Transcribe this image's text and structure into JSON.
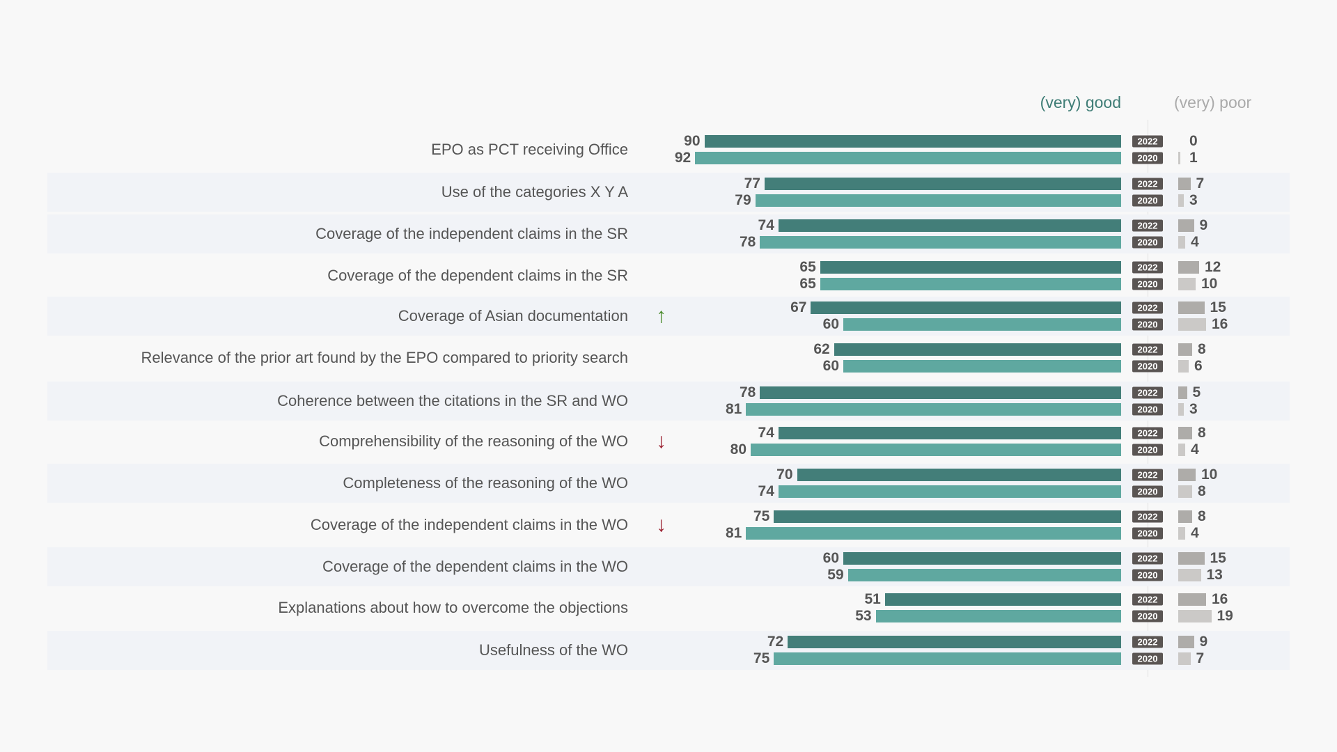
{
  "chart_data": {
    "type": "bar",
    "title": "",
    "legend": {
      "good": "(very) good",
      "poor": "(very) poor"
    },
    "years": [
      "2022",
      "2020"
    ],
    "colors": {
      "good_2022": "#437e79",
      "good_2020": "#5fa8a0",
      "poor_2022": "#aeaca9",
      "poor_2020": "#cbc9c7",
      "up": "#4a8a2c",
      "down": "#9b2231"
    },
    "categories": [
      "EPO as PCT receiving Office",
      "Use of the categories X Y A",
      "Coverage of the independent claims in the SR",
      "Coverage of the dependent claims in the SR",
      "Coverage of Asian documentation",
      "Relevance of the prior art found by the EPO compared to priority search",
      "Coherence between the citations in the SR and WO",
      "Comprehensibility of the reasoning of the WO",
      "Completeness of the reasoning of the WO",
      "Coverage of the independent claims in the WO",
      "Coverage of the dependent claims in the WO",
      "Explanations about how to overcome the objections",
      "Usefulness of the WO"
    ],
    "trend": [
      "",
      "",
      "",
      "",
      "up",
      "",
      "",
      "down",
      "",
      "down",
      "",
      "",
      ""
    ],
    "trend_symbols": {
      "up": "↑",
      "down": "↓"
    },
    "series": [
      {
        "name": "(very) good 2022",
        "values": [
          90,
          77,
          74,
          65,
          67,
          62,
          78,
          74,
          70,
          75,
          60,
          51,
          72
        ]
      },
      {
        "name": "(very) good 2020",
        "values": [
          92,
          79,
          78,
          65,
          60,
          60,
          81,
          80,
          74,
          81,
          59,
          53,
          75
        ]
      },
      {
        "name": "(very) poor 2022",
        "values": [
          0,
          7,
          9,
          12,
          15,
          8,
          5,
          8,
          10,
          8,
          15,
          16,
          9
        ]
      },
      {
        "name": "(very) poor 2020",
        "values": [
          1,
          3,
          4,
          10,
          16,
          6,
          3,
          4,
          8,
          4,
          13,
          19,
          7
        ]
      }
    ],
    "xlim": [
      0,
      100
    ]
  }
}
